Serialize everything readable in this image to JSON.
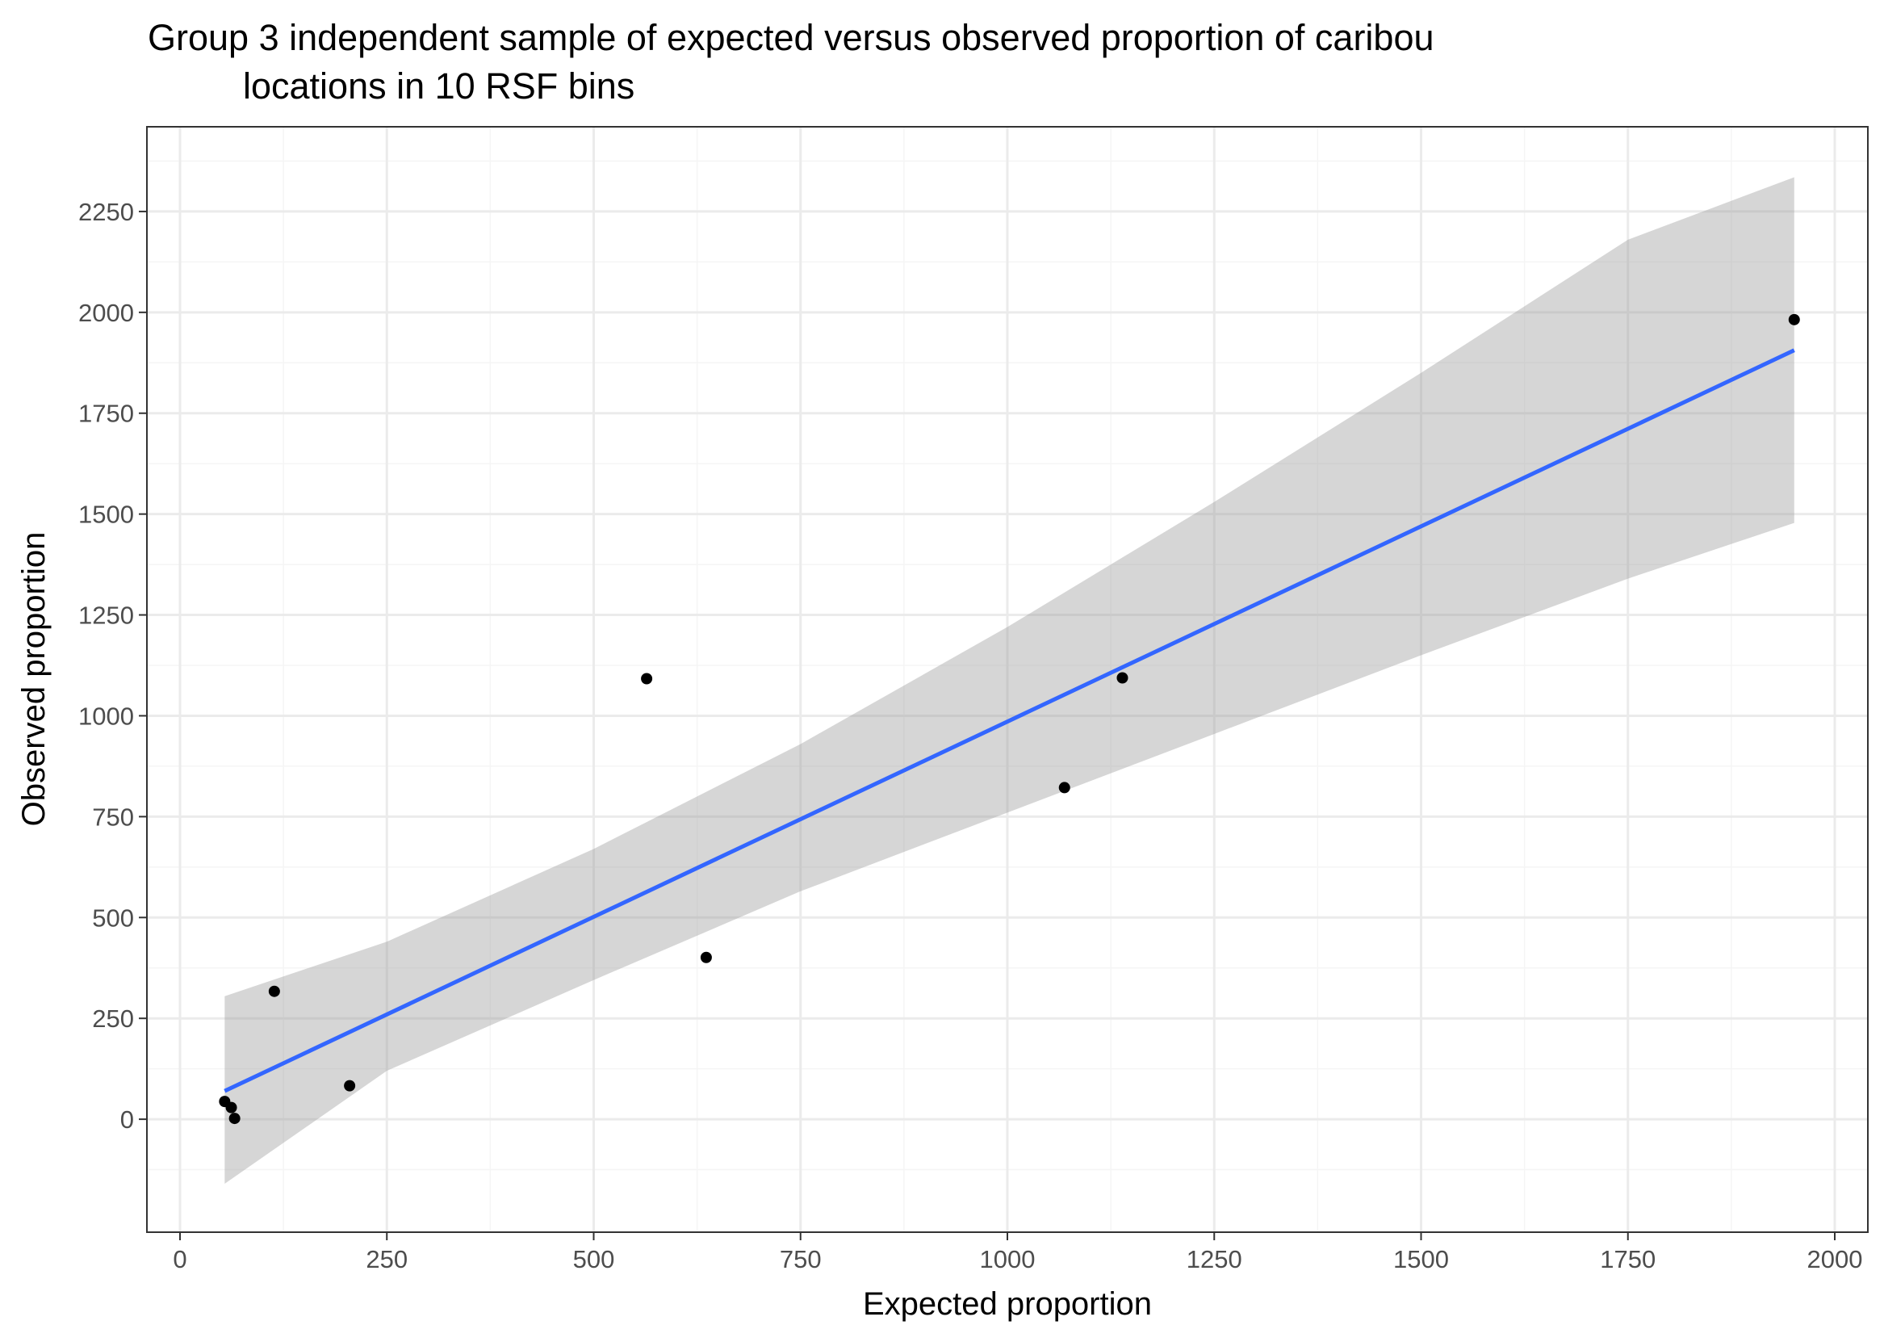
{
  "chart_data": {
    "type": "scatter",
    "title_line1": "Group 3 independent sample of expected versus observed proportion of caribou",
    "title_line2": "locations in 10 RSF bins",
    "xlabel": "Expected proportion",
    "ylabel": "Observed proportion",
    "xlim": [
      -40,
      2040
    ],
    "ylim": [
      -280,
      2460
    ],
    "xticks": [
      0,
      250,
      500,
      750,
      1000,
      1250,
      1500,
      1750,
      2000
    ],
    "yticks": [
      0,
      250,
      500,
      750,
      1000,
      1250,
      1500,
      1750,
      2000,
      2250
    ],
    "grid": true,
    "points": [
      {
        "x": 54,
        "y": 44
      },
      {
        "x": 62,
        "y": 29
      },
      {
        "x": 66,
        "y": 2
      },
      {
        "x": 114,
        "y": 317
      },
      {
        "x": 205,
        "y": 83
      },
      {
        "x": 564,
        "y": 1092
      },
      {
        "x": 636,
        "y": 401
      },
      {
        "x": 1069,
        "y": 822
      },
      {
        "x": 1139,
        "y": 1094
      },
      {
        "x": 1951,
        "y": 1982
      }
    ],
    "fit_line": {
      "x": [
        54,
        1951
      ],
      "y": [
        70,
        1906
      ]
    },
    "confidence_band": {
      "x": [
        54,
        250,
        500,
        750,
        1000,
        1250,
        1500,
        1750,
        1951
      ],
      "upper": [
        305,
        440,
        670,
        930,
        1220,
        1530,
        1850,
        2180,
        2335
      ],
      "lower": [
        -160,
        120,
        345,
        565,
        760,
        955,
        1150,
        1340,
        1478
      ]
    },
    "colors": {
      "line": "#3366ff",
      "band": "#999999",
      "point": "#000000",
      "grid_major": "#ebebeb",
      "grid_minor": "#f5f5f5",
      "panel_border": "#333333"
    }
  }
}
